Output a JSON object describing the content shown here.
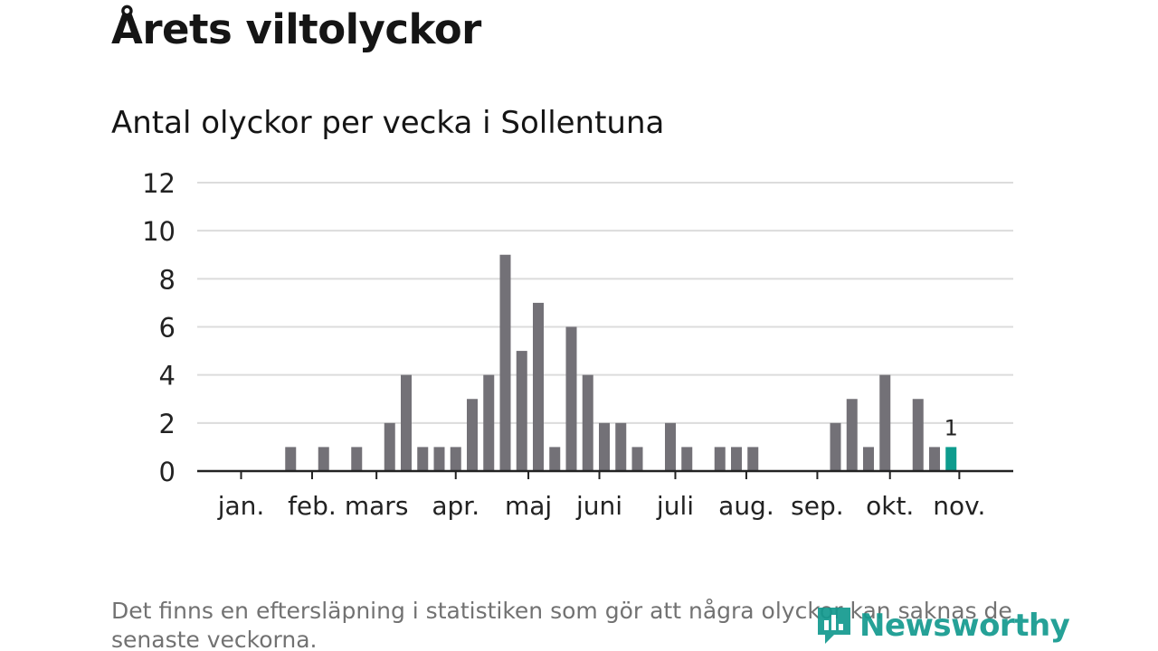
{
  "header": {
    "title": "Årets viltolyckor"
  },
  "chart_data": {
    "type": "bar",
    "title": "Antal olyckor per vecka i Sollentuna",
    "xlabel": "",
    "ylabel": "",
    "ylim": [
      0,
      12
    ],
    "y_ticks": [
      0,
      2,
      4,
      6,
      8,
      10,
      12
    ],
    "grid": true,
    "weeks": [
      1,
      2,
      3,
      4,
      5,
      6,
      7,
      8,
      9,
      10,
      11,
      12,
      13,
      14,
      15,
      16,
      17,
      18,
      19,
      20,
      21,
      22,
      23,
      24,
      25,
      26,
      27,
      28,
      29,
      30,
      31,
      32,
      33,
      34,
      35,
      36,
      37,
      38,
      39,
      40,
      41,
      42,
      43,
      44,
      45,
      46,
      47
    ],
    "values": [
      0,
      0,
      0,
      0,
      0,
      1,
      0,
      1,
      0,
      1,
      0,
      2,
      4,
      1,
      1,
      1,
      3,
      4,
      9,
      5,
      7,
      1,
      6,
      4,
      2,
      2,
      1,
      0,
      2,
      1,
      0,
      1,
      1,
      1,
      0,
      0,
      0,
      0,
      2,
      3,
      1,
      4,
      0,
      3,
      1,
      1,
      0
    ],
    "highlight": {
      "week": 46,
      "value": 1,
      "label": "1",
      "color": "#0e9c8e"
    },
    "bar_color": "#737177",
    "month_labels": [
      {
        "label": "jan.",
        "week": 3
      },
      {
        "label": "feb.",
        "week": 7.3
      },
      {
        "label": "mars",
        "week": 11.2
      },
      {
        "label": "apr.",
        "week": 16
      },
      {
        "label": "maj",
        "week": 20.4
      },
      {
        "label": "juni",
        "week": 24.7
      },
      {
        "label": "juli",
        "week": 29.3
      },
      {
        "label": "aug.",
        "week": 33.6
      },
      {
        "label": "sep.",
        "week": 37.9
      },
      {
        "label": "okt.",
        "week": 42.3
      },
      {
        "label": "nov.",
        "week": 46.5
      }
    ]
  },
  "footer": {
    "note": "Det finns en eftersläpning i statistiken som gör att några olyckor kan saknas de senaste veckorna.",
    "brand": "Newsworthy"
  }
}
